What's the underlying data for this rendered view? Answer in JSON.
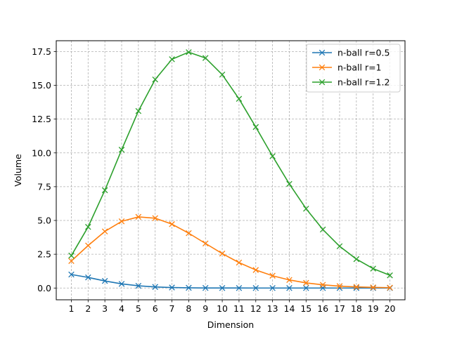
{
  "chart_data": {
    "type": "line",
    "title": "",
    "xlabel": "Dimension",
    "ylabel": "Volume",
    "xlim": [
      0.1,
      20.9
    ],
    "ylim": [
      -0.87,
      18.3
    ],
    "x_ticks": [
      1,
      2,
      3,
      4,
      5,
      6,
      7,
      8,
      9,
      10,
      11,
      12,
      13,
      14,
      15,
      16,
      17,
      18,
      19,
      20
    ],
    "y_ticks": [
      0.0,
      2.5,
      5.0,
      7.5,
      10.0,
      12.5,
      15.0,
      17.5
    ],
    "y_tick_labels": [
      "0.0",
      "2.5",
      "5.0",
      "7.5",
      "10.0",
      "12.5",
      "15.0",
      "17.5"
    ],
    "grid": true,
    "grid_style": "dashed",
    "legend_position": "top-right",
    "marker": "x",
    "x": [
      1,
      2,
      3,
      4,
      5,
      6,
      7,
      8,
      9,
      10,
      11,
      12,
      13,
      14,
      15,
      16,
      17,
      18,
      19,
      20
    ],
    "series": [
      {
        "name": "n-ball r=0.5",
        "color": "#1f77b4",
        "values": [
          1.0,
          0.785,
          0.524,
          0.308,
          0.164,
          0.081,
          0.037,
          0.016,
          0.006,
          0.0025,
          0.0009,
          0.0003,
          0.0001,
          0.0,
          0.0,
          0.0,
          0.0,
          0.0,
          0.0,
          0.0
        ]
      },
      {
        "name": "n-ball r=1",
        "color": "#ff7f0e",
        "values": [
          2.0,
          3.142,
          4.189,
          4.935,
          5.264,
          5.168,
          4.725,
          4.059,
          3.299,
          2.55,
          1.884,
          1.335,
          0.911,
          0.599,
          0.381,
          0.235,
          0.141,
          0.082,
          0.047,
          0.026
        ]
      },
      {
        "name": "n-ball r=1.2",
        "color": "#2ca02c",
        "values": [
          2.4,
          4.524,
          7.238,
          10.233,
          13.099,
          15.432,
          16.929,
          17.452,
          17.023,
          15.792,
          13.999,
          11.913,
          9.757,
          7.704,
          5.872,
          4.33,
          3.091,
          2.14,
          1.438,
          0.939
        ]
      }
    ]
  }
}
